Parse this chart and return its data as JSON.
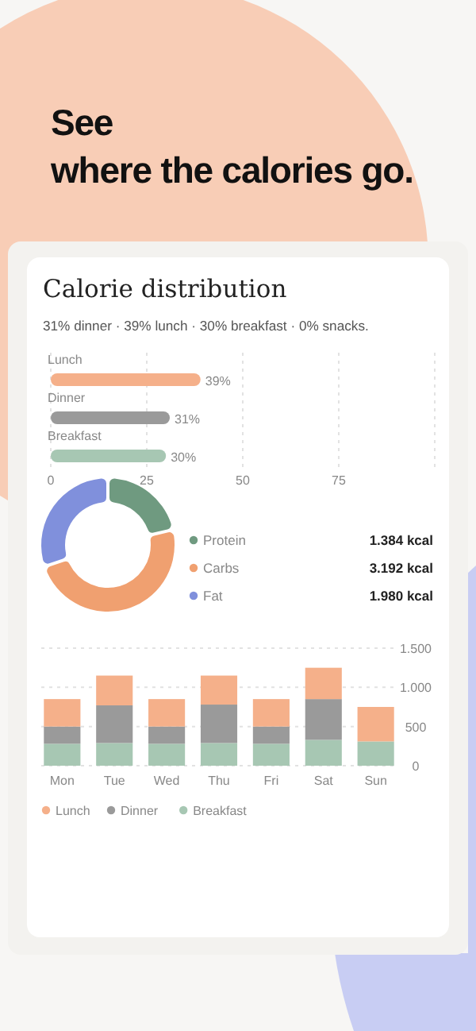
{
  "chart_data": [
    {
      "type": "other",
      "title": "See\nwhere the calories go."
    },
    {
      "type": "bar",
      "title": "Calorie distribution",
      "subtitle": "31% dinner · 39% lunch · 30% breakfast · 0% snacks.",
      "orientation": "horizontal",
      "categories": [
        "Lunch",
        "Dinner",
        "Breakfast"
      ],
      "values": [
        39,
        31,
        30
      ],
      "colors": [
        "#f5b08a",
        "#9a9a9a",
        "#a7c7b3"
      ],
      "value_labels": [
        "39%",
        "31%",
        "30%"
      ],
      "xlim": [
        0,
        100
      ],
      "xticks": [
        0,
        25,
        50,
        75,
        {
          "value": 100,
          "label": null
        }
      ],
      "grid": "x"
    },
    {
      "type": "donut",
      "categories": [
        "Protein",
        "Carbs",
        "Fat"
      ],
      "values": [
        1384,
        3192,
        1980
      ],
      "colors": [
        "#6f9a80",
        "#f0a070",
        "#8090dc"
      ],
      "value_labels": [
        "1.384 kcal",
        "3.192 kcal",
        "1.980 kcal"
      ],
      "legend": "right"
    },
    {
      "type": "bar",
      "stacked": true,
      "categories": [
        "Mon",
        "Tue",
        "Wed",
        "Thu",
        "Fri",
        "Sat",
        "Sun"
      ],
      "series": [
        {
          "name": "Breakfast",
          "color": "#a7c7b3",
          "values": [
            280,
            290,
            280,
            290,
            280,
            330,
            310
          ]
        },
        {
          "name": "Dinner",
          "color": "#9a9a9a",
          "values": [
            220,
            480,
            220,
            490,
            220,
            520,
            0
          ]
        },
        {
          "name": "Lunch",
          "color": "#f5b08a",
          "values": [
            350,
            380,
            350,
            370,
            350,
            400,
            440
          ]
        }
      ],
      "ylim": [
        0,
        1500
      ],
      "yticks": [
        0,
        500,
        {
          "value": 1000,
          "label": "1.000"
        },
        {
          "value": 1500,
          "label": "1.500"
        }
      ],
      "grid": "y",
      "legend": "bottom"
    }
  ]
}
